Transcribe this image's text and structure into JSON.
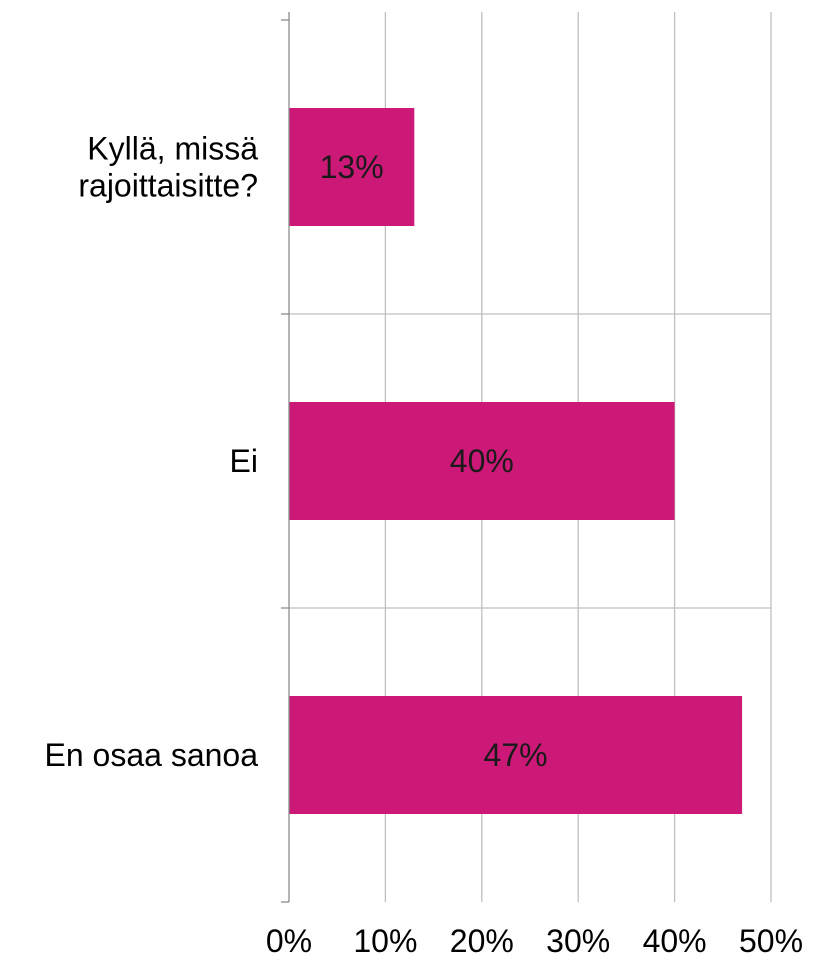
{
  "chart_data": {
    "type": "bar",
    "orientation": "horizontal",
    "categories": [
      [
        "Kyllä, missä",
        "rajoittaisitte?"
      ],
      [
        "Ei"
      ],
      [
        "En osaa sanoa"
      ]
    ],
    "values": [
      13,
      40,
      47
    ],
    "data_labels": [
      "13%",
      "40%",
      "47%"
    ],
    "xlim": [
      0,
      50
    ],
    "xticks": [
      0,
      10,
      20,
      30,
      40,
      50
    ],
    "xtick_labels": [
      "0%",
      "10%",
      "20%",
      "30%",
      "40%",
      "50%"
    ],
    "bar_color": "#cc1977",
    "grid": true,
    "legend": "none"
  }
}
